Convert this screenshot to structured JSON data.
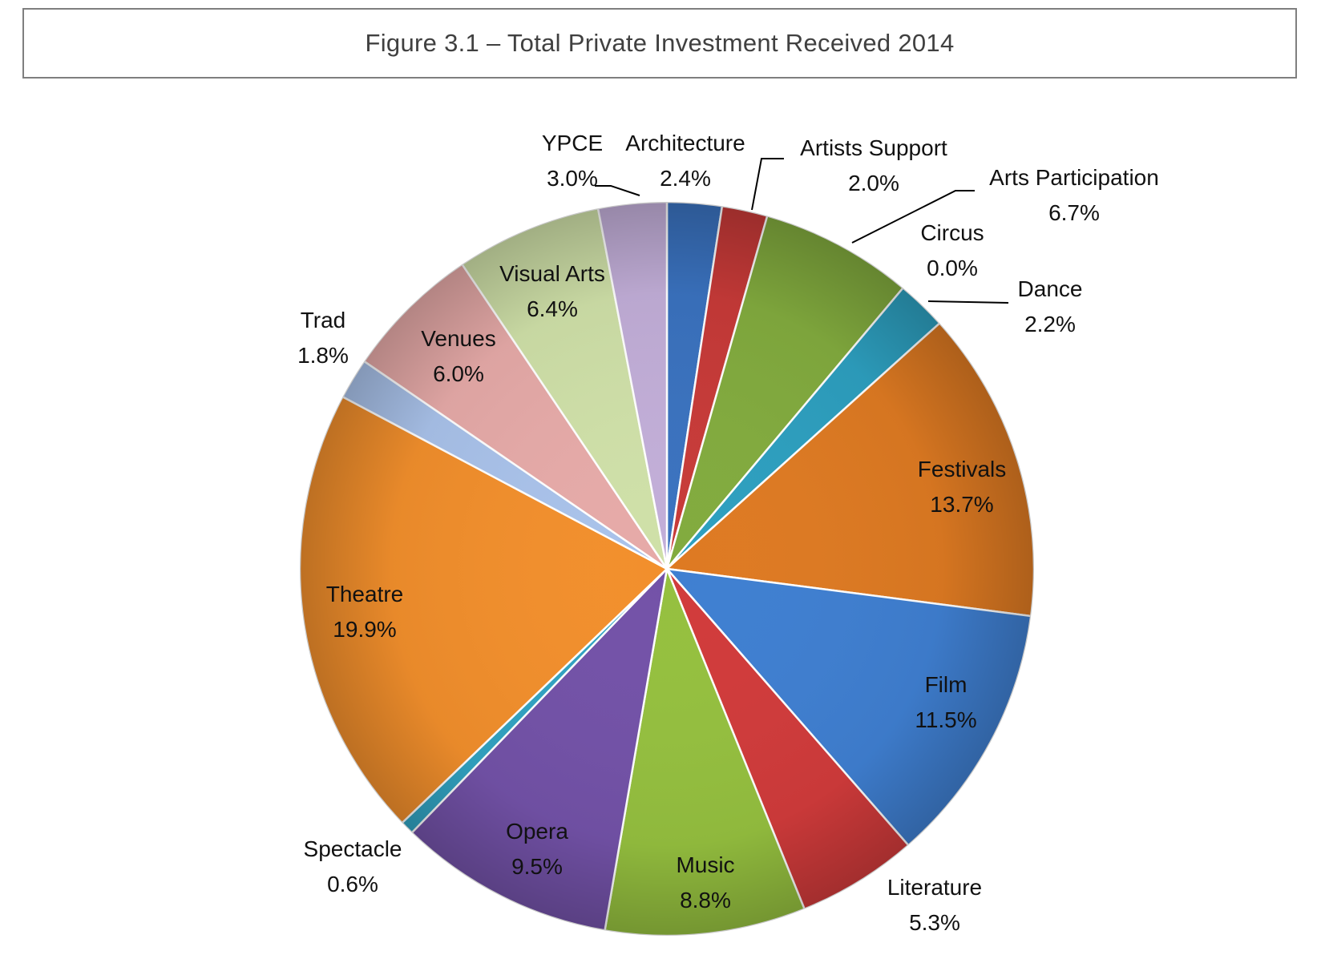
{
  "chart_data": {
    "type": "pie",
    "title": "Figure 3.1 – Total Private Investment Received 2014",
    "start": "12 o'clock",
    "direction": "clockwise",
    "slices": [
      {
        "name": "Architecture",
        "value": 2.4,
        "pct_label": "2.4%",
        "color": "#3a72bf"
      },
      {
        "name": "Artists Support",
        "value": 2.0,
        "pct_label": "2.0%",
        "color": "#c73a38"
      },
      {
        "name": "Arts Participation",
        "value": 6.7,
        "pct_label": "6.7%",
        "color": "#82ab3e"
      },
      {
        "name": "Circus",
        "value": 0.0,
        "pct_label": "0.0%",
        "color": "#6b4d99"
      },
      {
        "name": "Dance",
        "value": 2.2,
        "pct_label": "2.2%",
        "color": "#2d9fbf"
      },
      {
        "name": "Festivals",
        "value": 13.7,
        "pct_label": "13.7%",
        "color": "#de7a22"
      },
      {
        "name": "Film",
        "value": 11.5,
        "pct_label": "11.5%",
        "color": "#3f7fd1"
      },
      {
        "name": "Literature",
        "value": 5.3,
        "pct_label": "5.3%",
        "color": "#d13b3b"
      },
      {
        "name": "Music",
        "value": 8.8,
        "pct_label": "8.8%",
        "color": "#95c03f"
      },
      {
        "name": "Opera",
        "value": 9.5,
        "pct_label": "9.5%",
        "color": "#7352a8"
      },
      {
        "name": "Spectacle",
        "value": 0.6,
        "pct_label": "0.6%",
        "color": "#31a3c2"
      },
      {
        "name": "Theatre",
        "value": 19.9,
        "pct_label": "19.9%",
        "color": "#f28f2c"
      },
      {
        "name": "Trad",
        "value": 1.8,
        "pct_label": "1.8%",
        "color": "#a9c2ea"
      },
      {
        "name": "Venues",
        "value": 6.0,
        "pct_label": "6.0%",
        "color": "#e6aaa8"
      },
      {
        "name": "Visual Arts",
        "value": 6.4,
        "pct_label": "6.4%",
        "color": "#cfe0a8"
      },
      {
        "name": "YPCE",
        "value": 3.0,
        "pct_label": "3.0%",
        "color": "#c2aed8"
      }
    ]
  }
}
